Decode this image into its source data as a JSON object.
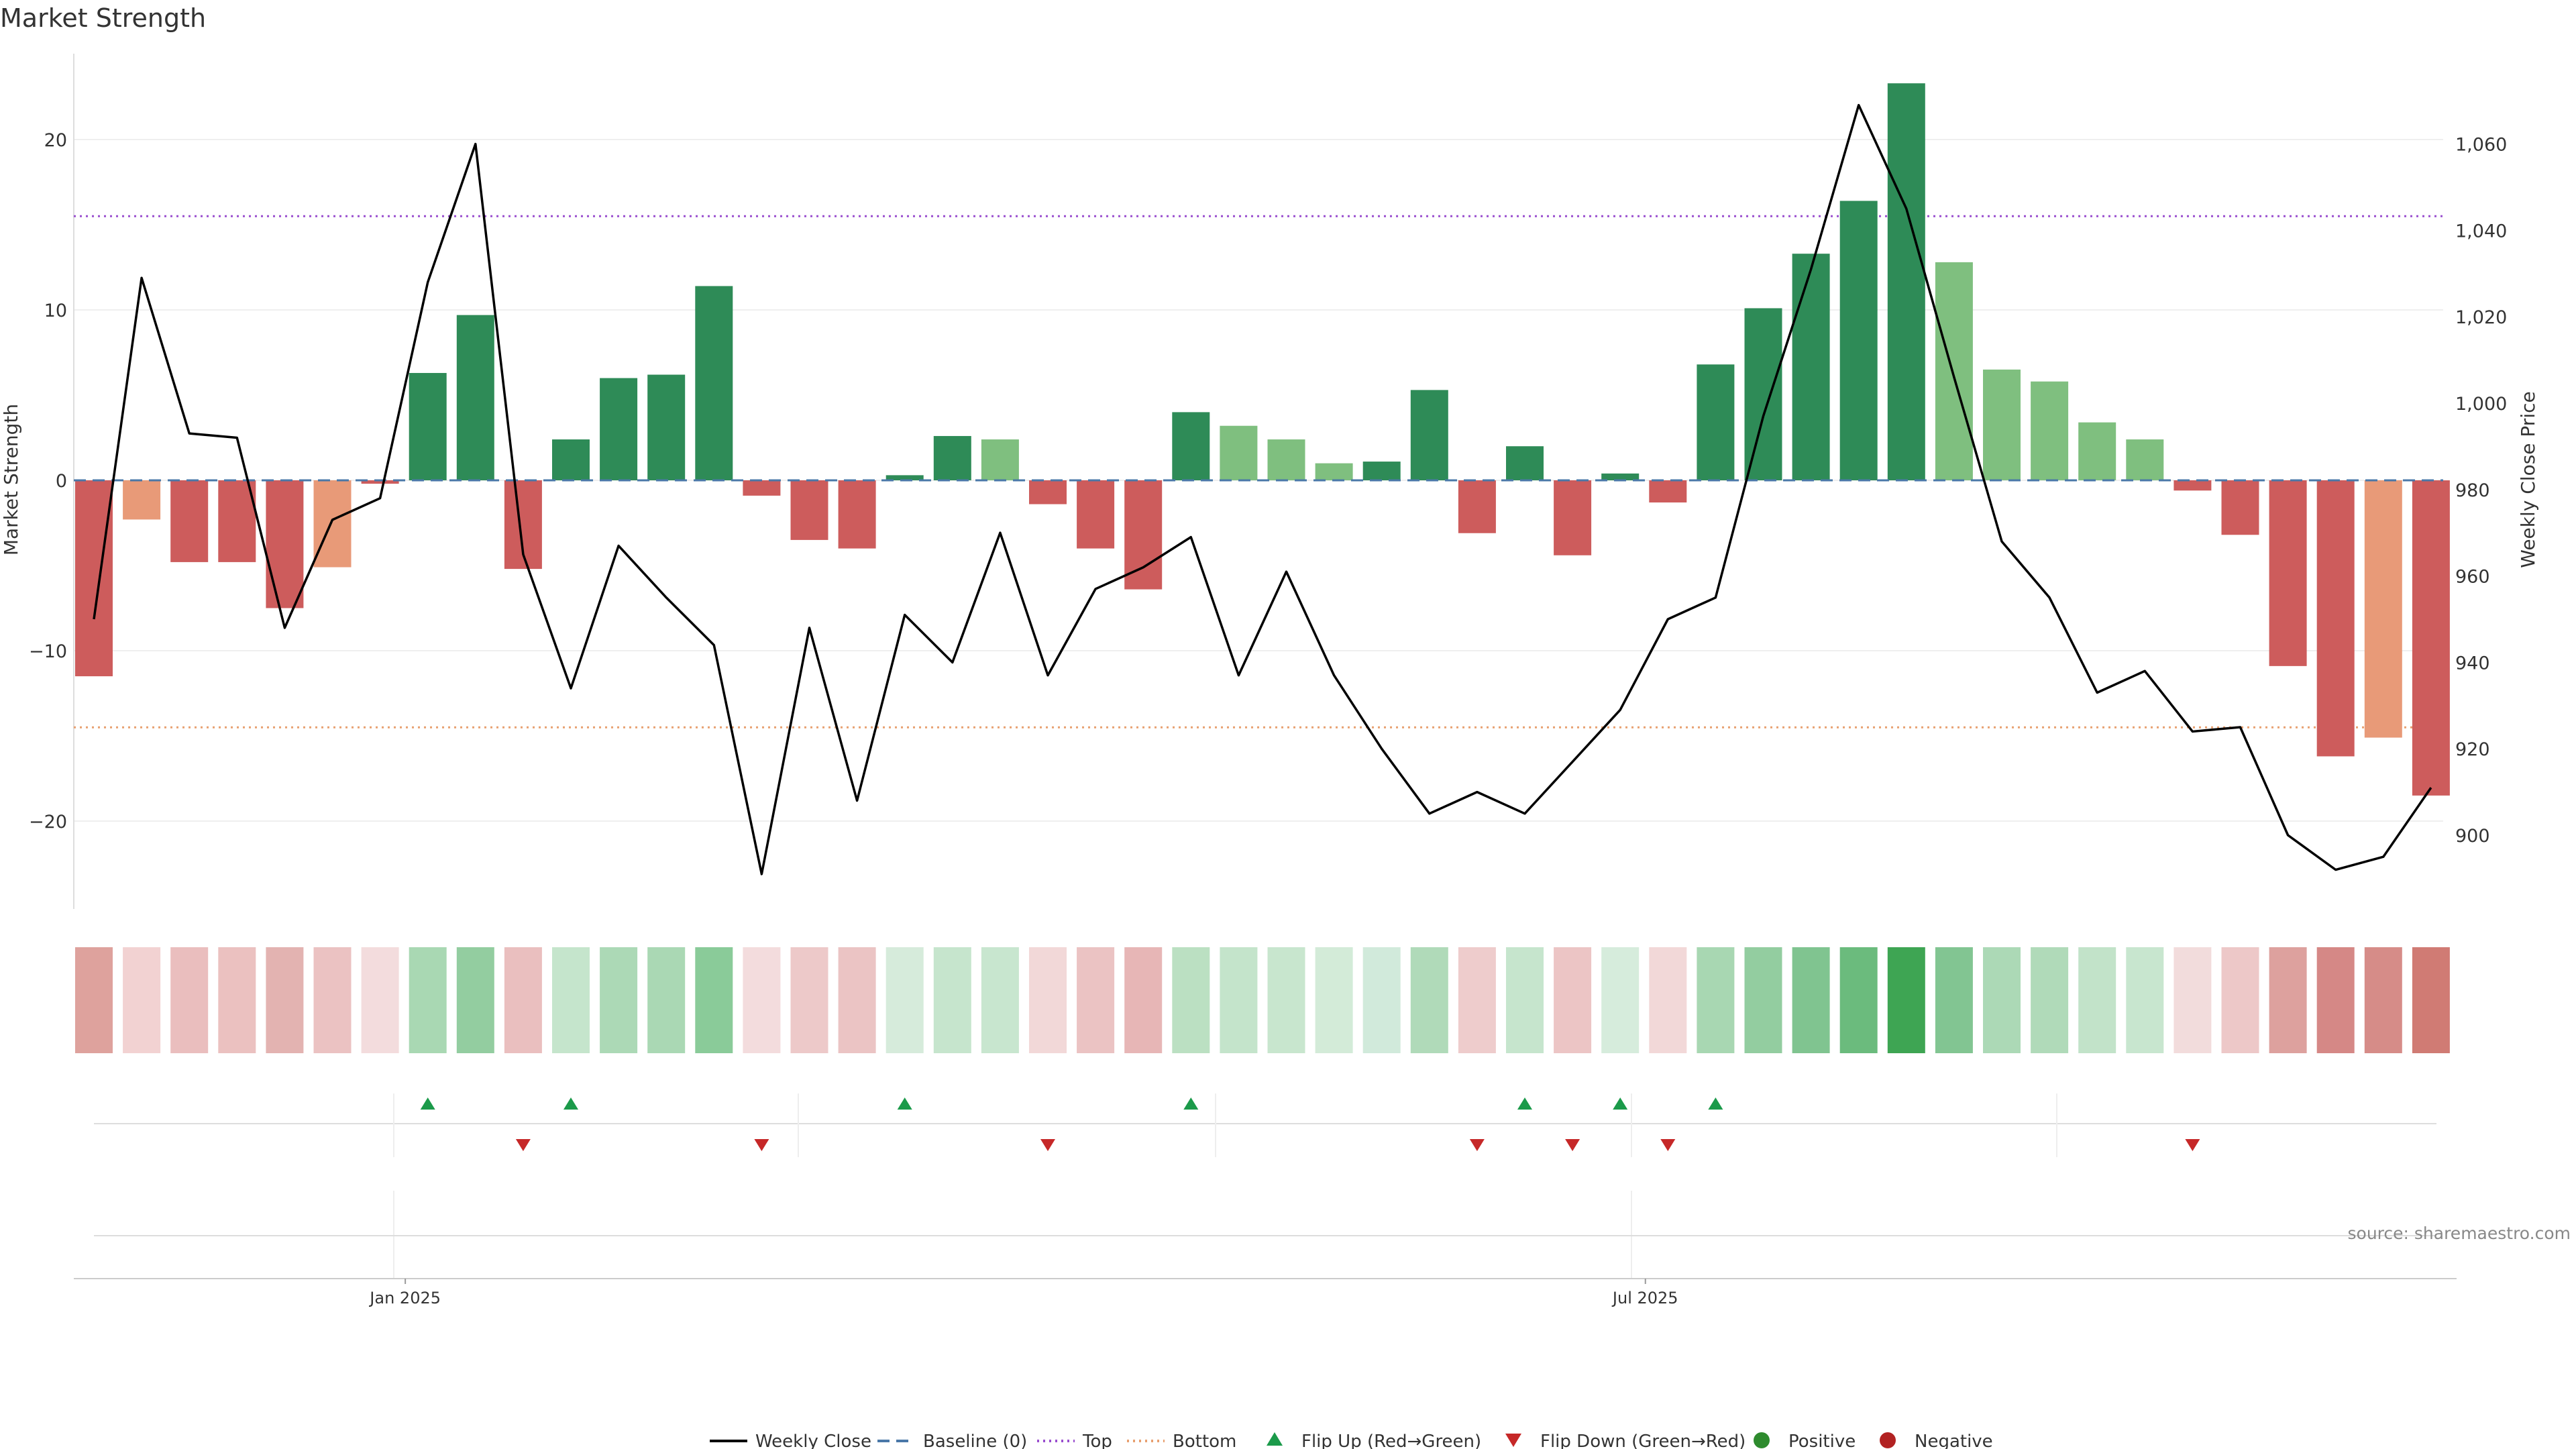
{
  "chart_data": {
    "type": "bar",
    "title": "Market Strength",
    "ylabel": "Market Strength",
    "ylabel_right": "Weekly Close Price",
    "ylim": [
      -25,
      25
    ],
    "ylim_right": [
      880,
      1080
    ],
    "y_ticks": [
      20,
      10,
      0,
      -10,
      -20
    ],
    "y_tick_labels": [
      "20",
      "10",
      "0",
      "−10",
      "−20"
    ],
    "y_right_ticks": [
      1060,
      1040,
      1020,
      1000,
      980,
      960,
      940,
      920,
      900
    ],
    "y_right_tick_labels": [
      "1,060",
      "1,040",
      "1,020",
      "1,000",
      "980",
      "960",
      "940",
      "920",
      "900"
    ],
    "x_tick_labels": [
      {
        "index": 6.5,
        "label": "Jan 2025"
      },
      {
        "index": 32.5,
        "label": "Jul 2025"
      }
    ],
    "source": "source: sharemaestro.com",
    "top_level": 15.5,
    "bottom_level": -14.5,
    "baseline": 0,
    "series": [
      {
        "name": "Market Strength",
        "values": [
          -11.5,
          -2.3,
          -4.8,
          -4.8,
          -7.5,
          -5.1,
          -0.2,
          6.3,
          9.7,
          -5.2,
          2.4,
          6,
          6.2,
          11.4,
          -0.9,
          -3.5,
          -4,
          0.3,
          2.6,
          2.4,
          -1.4,
          -4,
          -6.4,
          4,
          3.2,
          2.4,
          1,
          1.1,
          5.3,
          -3.1,
          2,
          -4.4,
          0.4,
          -1.3,
          6.8,
          10.1,
          13.3,
          16.4,
          23.3,
          12.8,
          6.5,
          5.8,
          3.4,
          2.4,
          -0.6,
          -3.2,
          -10.9,
          -16.2,
          -15.1,
          -18.5
        ]
      },
      {
        "name": "Weekly Close",
        "values": [
          950,
          1029,
          993,
          992,
          948,
          973,
          978,
          1028,
          1060,
          965,
          934,
          967,
          955,
          944,
          891,
          948,
          908,
          951,
          940,
          970,
          937,
          957,
          962,
          969,
          937,
          961,
          937,
          920,
          905,
          910,
          905,
          917,
          929,
          950,
          955,
          997,
          1031,
          1069,
          1045,
          1006,
          968,
          955,
          933,
          938,
          924,
          925,
          900,
          892,
          895,
          911
        ]
      }
    ],
    "bar_colors": [
      "#cd5c5c",
      "#e89a78",
      "#cd5c5c",
      "#cd5c5c",
      "#cd5c5c",
      "#e89a78",
      "#cd5c5c",
      "#2e8b57",
      "#2e8b57",
      "#cd5c5c",
      "#2e8b57",
      "#2e8b57",
      "#2e8b57",
      "#2e8b57",
      "#cd5c5c",
      "#cd5c5c",
      "#cd5c5c",
      "#2e8b57",
      "#2e8b57",
      "#7fbf7f",
      "#cd5c5c",
      "#cd5c5c",
      "#cd5c5c",
      "#2e8b57",
      "#7fbf7f",
      "#7fbf7f",
      "#7fbf7f",
      "#2e8b57",
      "#2e8b57",
      "#cd5c5c",
      "#2e8b57",
      "#cd5c5c",
      "#2e8b57",
      "#cd5c5c",
      "#2e8b57",
      "#2e8b57",
      "#2e8b57",
      "#2e8b57",
      "#2e8b57",
      "#7fbf7f",
      "#7fbf7f",
      "#7fbf7f",
      "#7fbf7f",
      "#7fbf7f",
      "#cd5c5c",
      "#cd5c5c",
      "#cd5c5c",
      "#cd5c5c",
      "#e89a78",
      "#cd5c5c"
    ],
    "heat_colors": [
      "#dea29d",
      "#f2d2d2",
      "#eabebe",
      "#ebc1c0",
      "#e3b3b1",
      "#ebc2c2",
      "#f3dcdd",
      "#a9d8b3",
      "#93cda0",
      "#eabfbf",
      "#c5e5cc",
      "#acd9b6",
      "#aad8b4",
      "#8acb99",
      "#f3dcdd",
      "#edc9c9",
      "#ebc4c4",
      "#d6ebdb",
      "#c6e5cd",
      "#c8e6cf",
      "#f2d8d8",
      "#ebc3c3",
      "#e7b6b6",
      "#bbe0c2",
      "#c4e4cb",
      "#c8e6ce",
      "#d3ebd8",
      "#d1eadb",
      "#b0dab9",
      "#eecccc",
      "#c6e5cd",
      "#ecc5c5",
      "#d6ecdc",
      "#f2d8d8",
      "#a8d7b2",
      "#93cda0",
      "#80c490",
      "#6bbb7d",
      "#3ea553",
      "#82c592",
      "#acd9b6",
      "#b0dab9",
      "#c2e3c9",
      "#c8e6cf",
      "#f2dcdc",
      "#edc8c8",
      "#dda19e",
      "#d58886",
      "#d68c88",
      "#d07b74"
    ],
    "flip_up": [
      7,
      10,
      17,
      23,
      30,
      32,
      34
    ],
    "flip_down": [
      9,
      14,
      20,
      29,
      31,
      33,
      44
    ],
    "flip_up_color": "#1b9a4a",
    "flip_down_color": "#c62828",
    "positive_color": "#2e8b2e",
    "negative_color": "#b22222",
    "legend": [
      {
        "label": "Weekly Close",
        "kind": "line",
        "color": "#000000"
      },
      {
        "label": "Baseline (0)",
        "kind": "dashed",
        "color": "#4a78a8"
      },
      {
        "label": "Top",
        "kind": "dotted",
        "color": "#9a4fcf"
      },
      {
        "label": "Bottom",
        "kind": "dotted",
        "color": "#e8a070"
      },
      {
        "label": "Flip Up (Red→Green)",
        "kind": "tri-up",
        "color": "#1b9a4a"
      },
      {
        "label": "Flip Down (Green→Red)",
        "kind": "tri-down",
        "color": "#c62828"
      },
      {
        "label": "Positive",
        "kind": "dot",
        "color": "#2e8b2e"
      },
      {
        "label": "Negative",
        "kind": "dot",
        "color": "#b22222"
      }
    ],
    "legend_placement": "bottom",
    "grid": true
  }
}
